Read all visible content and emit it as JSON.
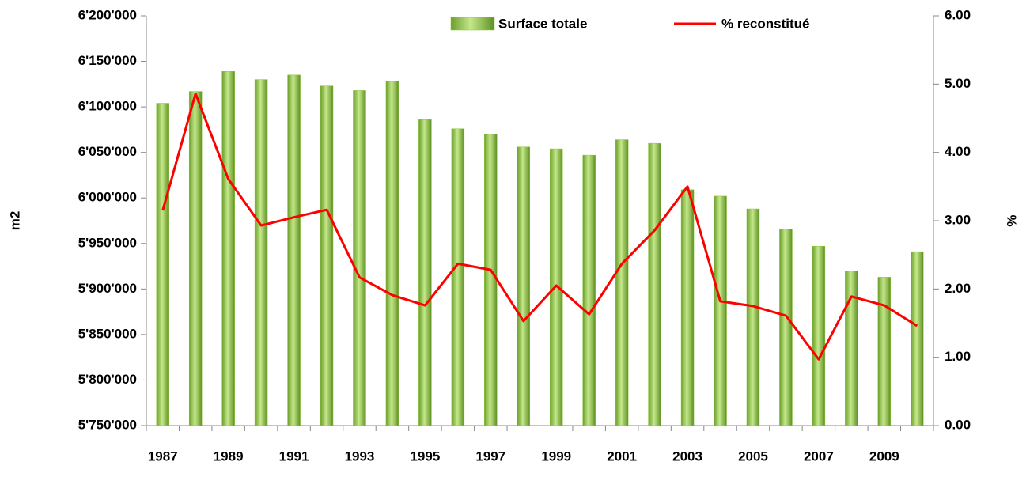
{
  "chart_data": {
    "type": "bar",
    "y_label": "m2",
    "y2_label": "%",
    "categories": [
      "1987",
      null,
      "1989",
      null,
      "1991",
      null,
      "1993",
      null,
      "1995",
      null,
      "1997",
      null,
      "1999",
      null,
      "2001",
      null,
      "2003",
      null,
      "2005",
      null,
      "2007",
      null,
      "2009",
      null
    ],
    "series": [
      {
        "name": "Surface totale",
        "type": "bar",
        "axis": "y",
        "color": "#8cc63f",
        "values": [
          6104000,
          6117000,
          6139000,
          6130000,
          6135000,
          6123000,
          6118000,
          6128000,
          6086000,
          6076000,
          6070000,
          6056000,
          6054000,
          6047000,
          6064000,
          6060000,
          6009000,
          6002000,
          5988000,
          5966000,
          5947000,
          5920000,
          5913000,
          5941000
        ]
      },
      {
        "name": "% reconstitué",
        "type": "line",
        "axis": "y2",
        "color": "#ff0000",
        "values": [
          3.15,
          4.86,
          3.61,
          2.93,
          3.05,
          3.16,
          2.17,
          1.91,
          1.76,
          2.37,
          2.28,
          1.53,
          2.05,
          1.63,
          2.37,
          2.86,
          3.5,
          1.82,
          1.75,
          1.61,
          0.97,
          1.89,
          1.76,
          1.46
        ]
      }
    ],
    "ylim": [
      5750000,
      6200000
    ],
    "yticks": [
      {
        "value": 5750000,
        "label": "5'750'000"
      },
      {
        "value": 5800000,
        "label": "5'800'000"
      },
      {
        "value": 5850000,
        "label": "5'850'000"
      },
      {
        "value": 5900000,
        "label": "5'900'000"
      },
      {
        "value": 5950000,
        "label": "5'950'000"
      },
      {
        "value": 6000000,
        "label": "6'000'000"
      },
      {
        "value": 6050000,
        "label": "6'050'000"
      },
      {
        "value": 6100000,
        "label": "6'100'000"
      },
      {
        "value": 6150000,
        "label": "6'150'000"
      },
      {
        "value": 6200000,
        "label": "6'200'000"
      }
    ],
    "y2lim": [
      0,
      6
    ],
    "y2ticks": [
      {
        "value": 0,
        "label": "0.00"
      },
      {
        "value": 1,
        "label": "1.00"
      },
      {
        "value": 2,
        "label": "2.00"
      },
      {
        "value": 3,
        "label": "3.00"
      },
      {
        "value": 4,
        "label": "4.00"
      },
      {
        "value": 5,
        "label": "5.00"
      },
      {
        "value": 6,
        "label": "6.00"
      }
    ],
    "legend": "top"
  }
}
